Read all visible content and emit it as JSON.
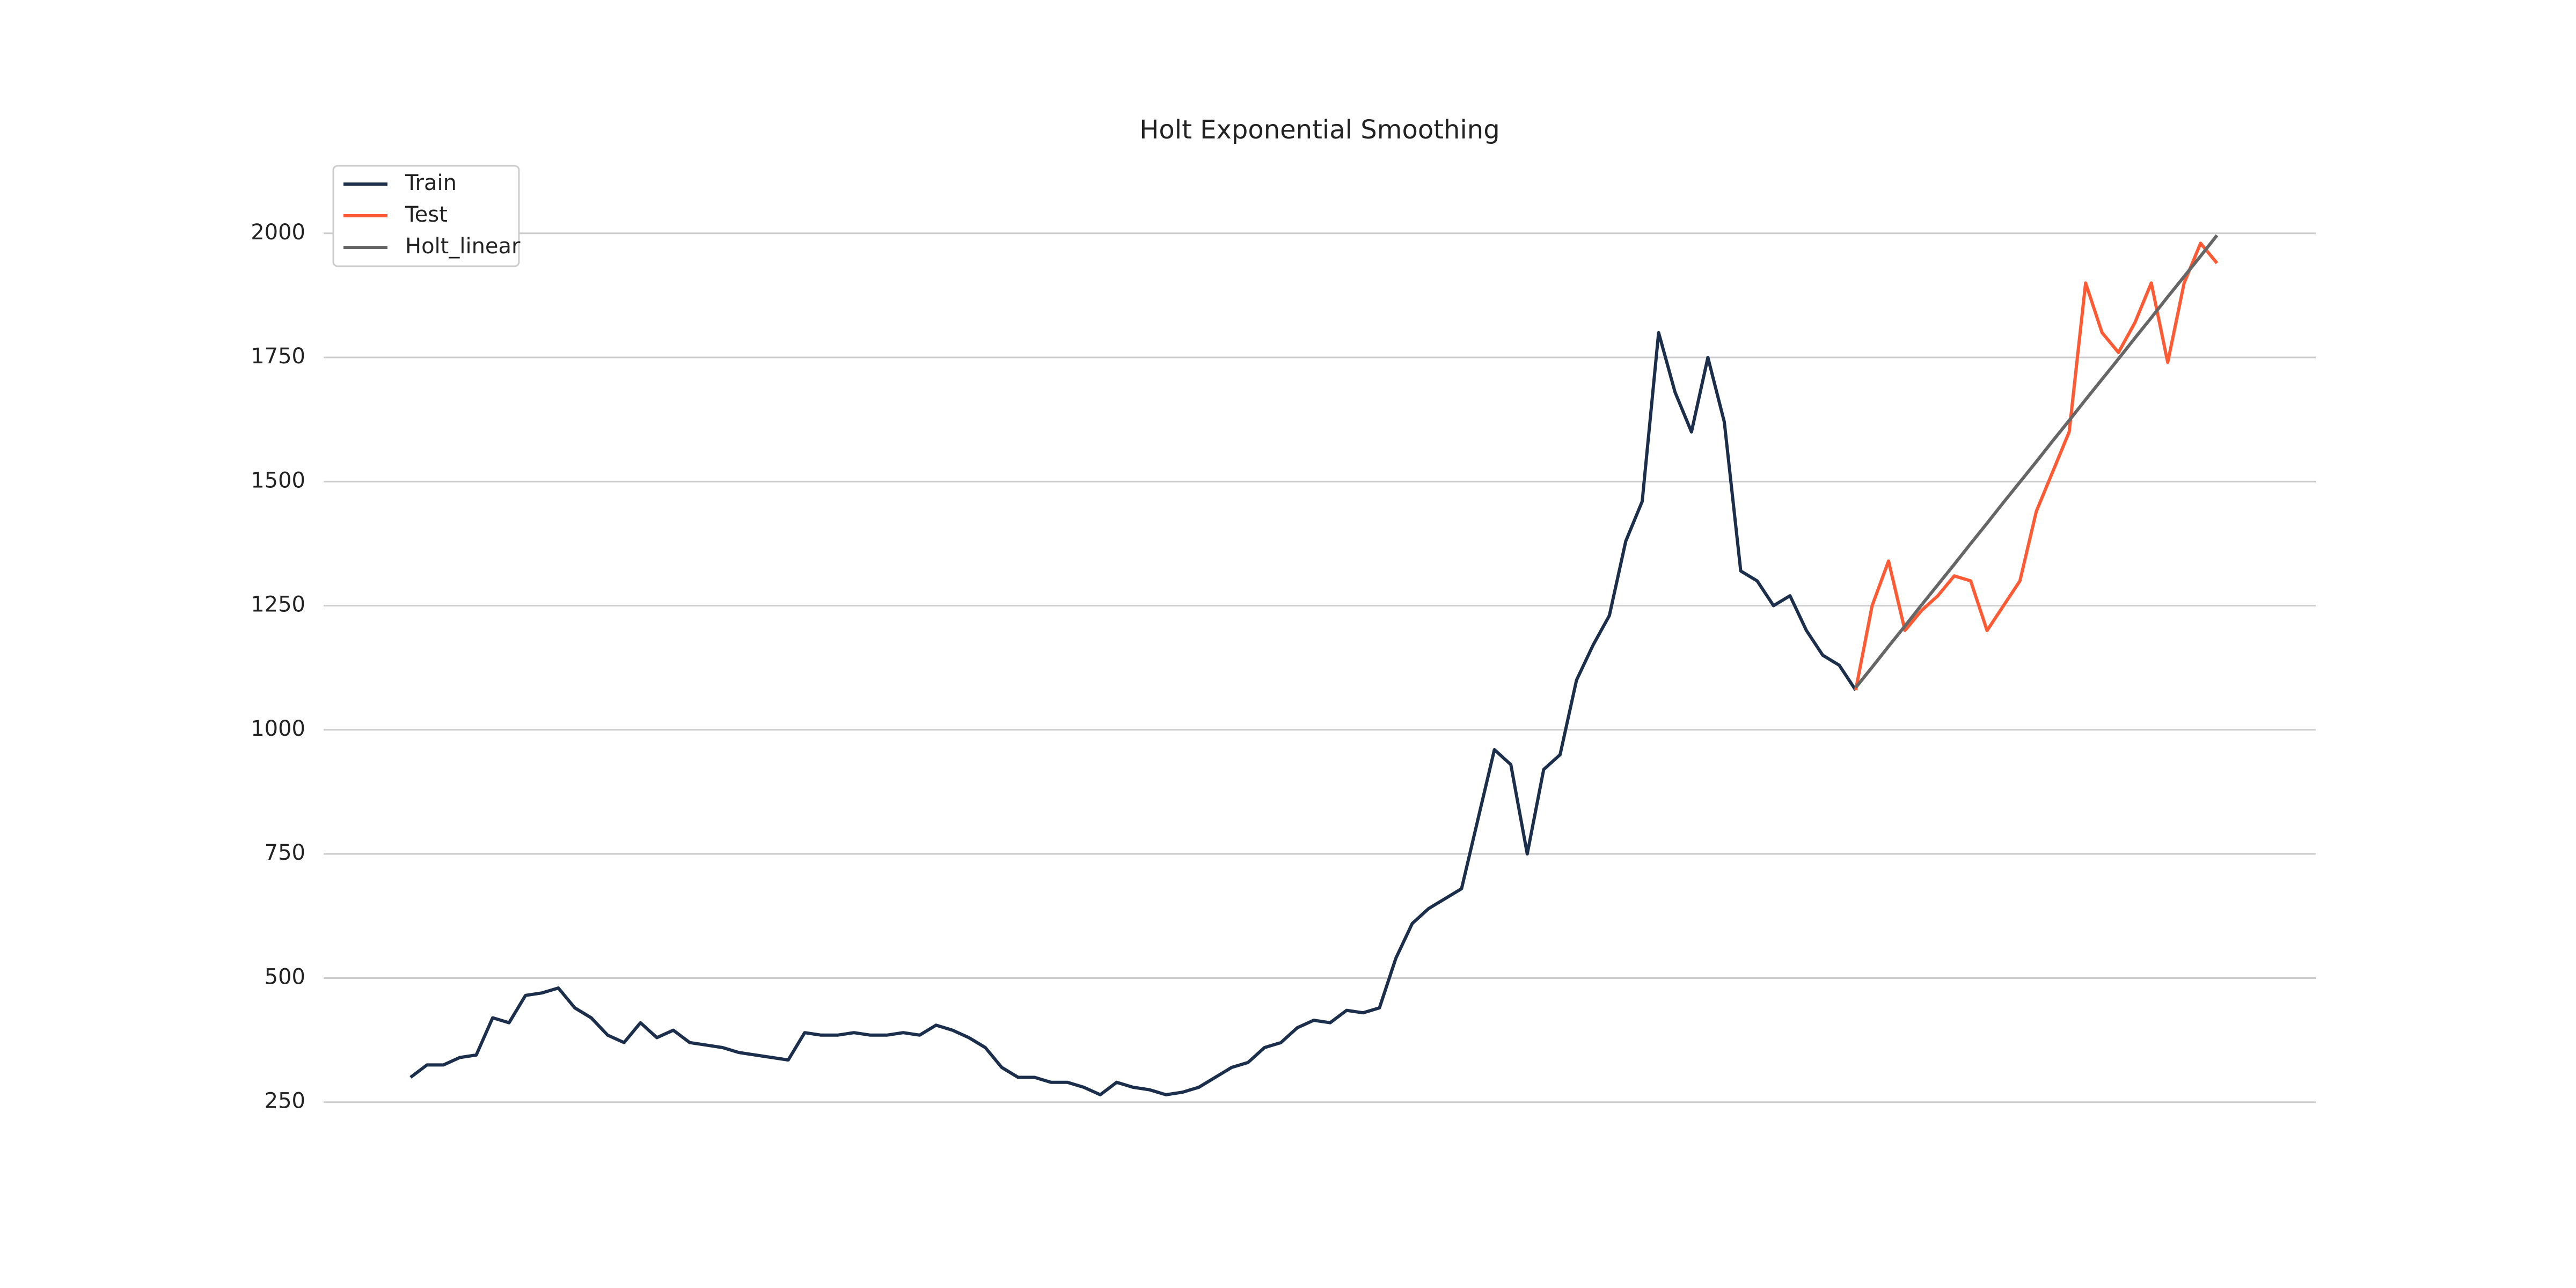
{
  "chart_data": {
    "type": "line",
    "title": "Holt Exponential Smoothing",
    "ylim": [
      160,
      2150
    ],
    "yticks": [
      250,
      500,
      750,
      1000,
      1250,
      1500,
      1750,
      2000
    ],
    "grid": true,
    "legend": "upper left",
    "series": [
      {
        "name": "Train",
        "color": "#1b2e4b",
        "values": [
          300,
          325,
          325,
          340,
          345,
          420,
          410,
          465,
          470,
          480,
          440,
          420,
          385,
          370,
          410,
          380,
          395,
          370,
          365,
          360,
          350,
          345,
          340,
          335,
          390,
          385,
          385,
          390,
          385,
          385,
          390,
          385,
          405,
          395,
          380,
          360,
          320,
          300,
          300,
          290,
          290,
          280,
          265,
          290,
          280,
          275,
          265,
          270,
          280,
          300,
          320,
          330,
          360,
          370,
          400,
          415,
          410,
          435,
          430,
          440,
          540,
          610,
          640,
          660,
          680,
          820,
          960,
          930,
          750,
          920,
          950,
          1100,
          1170,
          1230,
          1380,
          1460,
          1800,
          1680,
          1600,
          1750,
          1620,
          1320,
          1300,
          1250,
          1270,
          1200,
          1150,
          1130,
          1080,
          null,
          null,
          null,
          null,
          null,
          null,
          null,
          null,
          null,
          null,
          null,
          null,
          null,
          null,
          null,
          null,
          null,
          null,
          null,
          null,
          null,
          null,
          null
        ]
      },
      {
        "name": "Test",
        "color": "#ff5a33",
        "values": [
          null,
          null,
          null,
          null,
          null,
          null,
          null,
          null,
          null,
          null,
          null,
          null,
          null,
          null,
          null,
          null,
          null,
          null,
          null,
          null,
          null,
          null,
          null,
          null,
          null,
          null,
          null,
          null,
          null,
          null,
          null,
          null,
          null,
          null,
          null,
          null,
          null,
          null,
          null,
          null,
          null,
          null,
          null,
          null,
          null,
          null,
          null,
          null,
          null,
          null,
          null,
          null,
          null,
          null,
          null,
          null,
          null,
          null,
          null,
          null,
          null,
          null,
          null,
          null,
          null,
          null,
          null,
          null,
          null,
          null,
          null,
          null,
          null,
          null,
          null,
          null,
          null,
          null,
          null,
          null,
          null,
          null,
          null,
          null,
          null,
          null,
          null,
          null,
          1080,
          1250,
          1340,
          1200,
          1240,
          1270,
          1310,
          1300,
          1200,
          1250,
          1300,
          1440,
          1520,
          1600,
          1900,
          1800,
          1760,
          1820,
          1900,
          1740,
          1900,
          1980,
          1940
        ]
      },
      {
        "name": "Holt_linear",
        "color": "#666666",
        "values": [
          null,
          null,
          null,
          null,
          null,
          null,
          null,
          null,
          null,
          null,
          null,
          null,
          null,
          null,
          null,
          null,
          null,
          null,
          null,
          null,
          null,
          null,
          null,
          null,
          null,
          null,
          null,
          null,
          null,
          null,
          null,
          null,
          null,
          null,
          null,
          null,
          null,
          null,
          null,
          null,
          null,
          null,
          null,
          null,
          null,
          null,
          null,
          null,
          null,
          null,
          null,
          null,
          null,
          null,
          null,
          null,
          null,
          null,
          null,
          null,
          null,
          null,
          null,
          null,
          null,
          null,
          null,
          null,
          null,
          null,
          null,
          null,
          null,
          null,
          null,
          null,
          null,
          null,
          null,
          null,
          null,
          null,
          null,
          null,
          null,
          null,
          null,
          null,
          1085,
          1126,
          1168,
          1209,
          1251,
          1292,
          1333,
          1375,
          1416,
          1458,
          1499,
          1540,
          1582,
          1623,
          1665,
          1706,
          1747,
          1789,
          1830,
          1872,
          1913,
          1954,
          1996
        ]
      }
    ]
  }
}
